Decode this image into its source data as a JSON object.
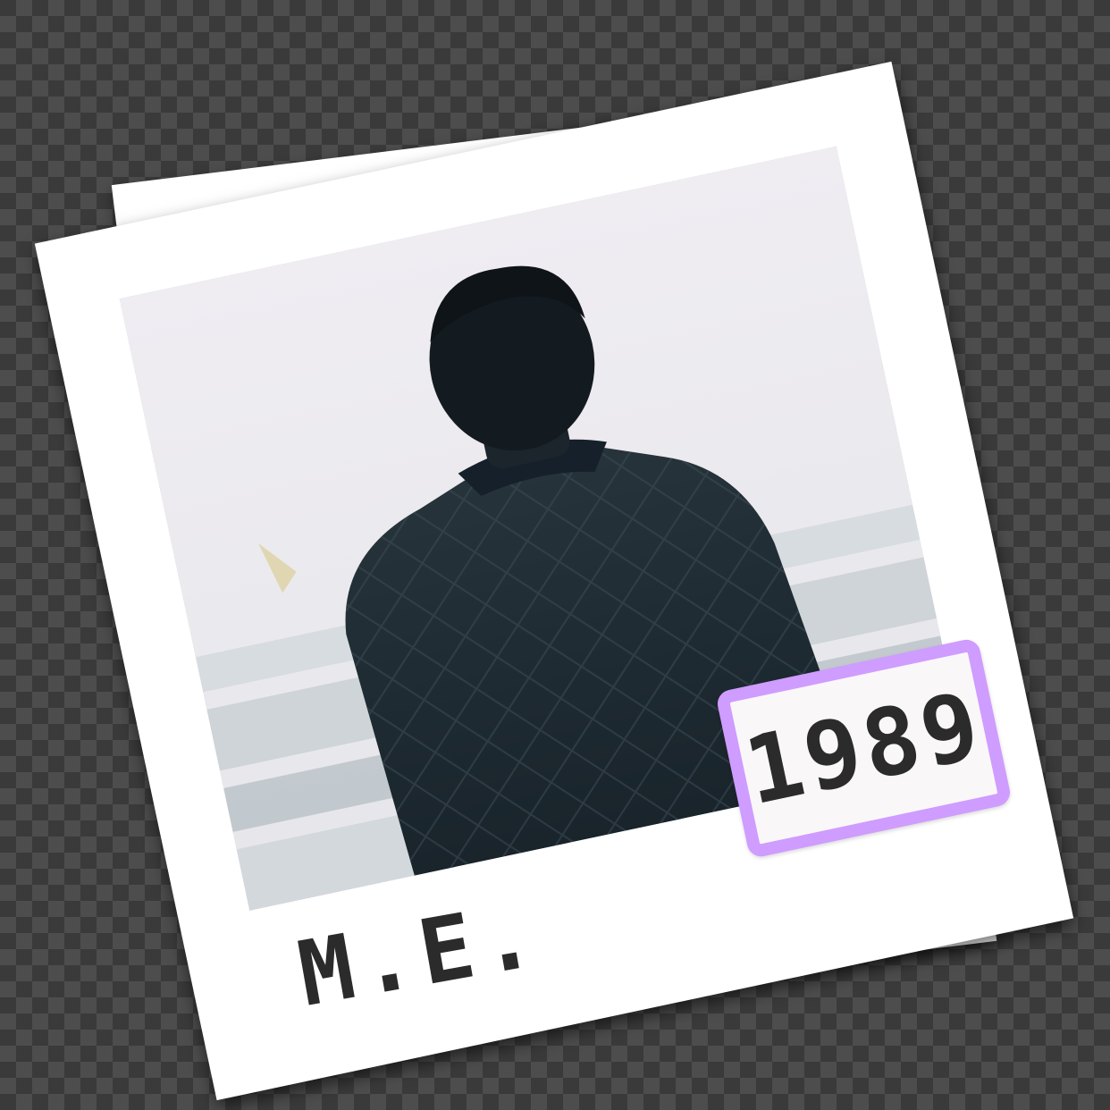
{
  "photo": {
    "caption": "M.E.",
    "year": "1989",
    "scene_icon": "person-back-view-icon"
  },
  "colors": {
    "background_checker_dark": "#3a3a3a",
    "background_checker_light": "#4d4d4d",
    "polaroid_frame": "#ffffff",
    "tag_border": "#cf9cff",
    "tag_fill": "#faf7f8",
    "ink": "#2b2b2b",
    "jacket": "#1f2b33",
    "sky": "#eceaf0"
  }
}
